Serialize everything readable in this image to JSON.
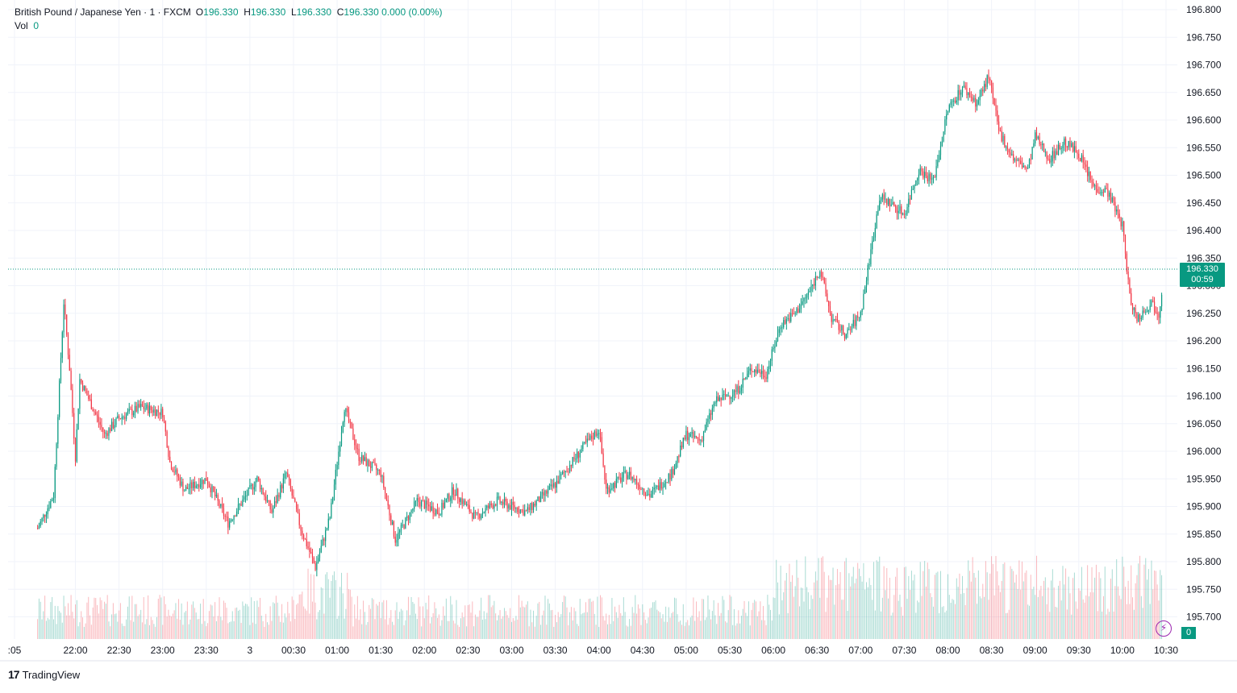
{
  "legend": {
    "symbol": "British Pound / Japanese Yen · 1 · FXCM",
    "o_label": "O",
    "o_value": "196.330",
    "h_label": "H",
    "h_value": "196.330",
    "l_label": "L",
    "l_value": "196.330",
    "c_label": "C",
    "c_value": "196.330",
    "change": "0.000 (0.00%)",
    "vol_label": "Vol",
    "vol_value": "0"
  },
  "price_tag": {
    "price": "196.330",
    "countdown": "00:59"
  },
  "volume_tag": "0",
  "brand": {
    "logo": "17",
    "name": "TradingView"
  },
  "colors": {
    "up": "#089981",
    "down": "#f23645",
    "grid": "#f0f3fa",
    "axis_text": "#131722",
    "alert_icon": "#9c27b0"
  },
  "icons": {
    "alert": "lightning-icon"
  },
  "chart_data": {
    "type": "candlestick",
    "title": "British Pound / Japanese Yen · 1 · FXCM",
    "interval": "1 minute",
    "y_ticks": [
      "196.800",
      "196.750",
      "196.700",
      "196.650",
      "196.600",
      "196.550",
      "196.500",
      "196.450",
      "196.400",
      "196.350",
      "196.300",
      "196.250",
      "196.200",
      "196.150",
      "196.100",
      "196.050",
      "196.000",
      "195.950",
      "195.900",
      "195.850",
      "195.800",
      "195.750",
      "195.700"
    ],
    "ylim": [
      195.66,
      196.81
    ],
    "x_ticks": [
      ":05",
      "22:00",
      "22:30",
      "23:00",
      "23:30",
      "3",
      "00:30",
      "01:00",
      "01:30",
      "02:00",
      "02:30",
      "03:00",
      "03:30",
      "04:00",
      "04:30",
      "05:00",
      "05:30",
      "06:00",
      "06:30",
      "07:00",
      "07:30",
      "08:00",
      "08:30",
      "09:00",
      "09:30",
      "10:00",
      "10:30"
    ],
    "grid": true,
    "last_price": 196.33,
    "price_path": [
      {
        "t": "21:34",
        "p": 195.86
      },
      {
        "t": "21:45",
        "p": 195.92
      },
      {
        "t": "21:52",
        "p": 196.27
      },
      {
        "t": "21:56",
        "p": 196.15
      },
      {
        "t": "22:00",
        "p": 195.99
      },
      {
        "t": "22:03",
        "p": 196.13
      },
      {
        "t": "22:10",
        "p": 196.09
      },
      {
        "t": "22:20",
        "p": 196.03
      },
      {
        "t": "22:30",
        "p": 196.06
      },
      {
        "t": "22:45",
        "p": 196.08
      },
      {
        "t": "23:00",
        "p": 196.07
      },
      {
        "t": "23:05",
        "p": 195.98
      },
      {
        "t": "23:15",
        "p": 195.93
      },
      {
        "t": "23:30",
        "p": 195.95
      },
      {
        "t": "23:45",
        "p": 195.87
      },
      {
        "t": "00:05",
        "p": 195.95
      },
      {
        "t": "00:15",
        "p": 195.89
      },
      {
        "t": "00:25",
        "p": 195.96
      },
      {
        "t": "00:35",
        "p": 195.86
      },
      {
        "t": "00:45",
        "p": 195.79
      },
      {
        "t": "00:55",
        "p": 195.88
      },
      {
        "t": "01:05",
        "p": 196.08
      },
      {
        "t": "01:15",
        "p": 195.99
      },
      {
        "t": "01:30",
        "p": 195.96
      },
      {
        "t": "01:40",
        "p": 195.84
      },
      {
        "t": "01:55",
        "p": 195.91
      },
      {
        "t": "02:10",
        "p": 195.89
      },
      {
        "t": "02:20",
        "p": 195.93
      },
      {
        "t": "02:35",
        "p": 195.88
      },
      {
        "t": "02:50",
        "p": 195.91
      },
      {
        "t": "03:10",
        "p": 195.89
      },
      {
        "t": "03:30",
        "p": 195.94
      },
      {
        "t": "03:50",
        "p": 196.01
      },
      {
        "t": "04:00",
        "p": 196.04
      },
      {
        "t": "04:05",
        "p": 195.93
      },
      {
        "t": "04:20",
        "p": 195.96
      },
      {
        "t": "04:35",
        "p": 195.92
      },
      {
        "t": "04:50",
        "p": 195.96
      },
      {
        "t": "05:00",
        "p": 196.03
      },
      {
        "t": "05:10",
        "p": 196.02
      },
      {
        "t": "05:20",
        "p": 196.09
      },
      {
        "t": "05:35",
        "p": 196.11
      },
      {
        "t": "05:45",
        "p": 196.15
      },
      {
        "t": "05:55",
        "p": 196.14
      },
      {
        "t": "06:05",
        "p": 196.23
      },
      {
        "t": "06:15",
        "p": 196.25
      },
      {
        "t": "06:25",
        "p": 196.29
      },
      {
        "t": "06:32",
        "p": 196.33
      },
      {
        "t": "06:40",
        "p": 196.24
      },
      {
        "t": "06:50",
        "p": 196.21
      },
      {
        "t": "07:00",
        "p": 196.25
      },
      {
        "t": "07:05",
        "p": 196.33
      },
      {
        "t": "07:13",
        "p": 196.46
      },
      {
        "t": "07:20",
        "p": 196.45
      },
      {
        "t": "07:30",
        "p": 196.43
      },
      {
        "t": "07:40",
        "p": 196.51
      },
      {
        "t": "07:50",
        "p": 196.49
      },
      {
        "t": "08:00",
        "p": 196.62
      },
      {
        "t": "08:10",
        "p": 196.66
      },
      {
        "t": "08:20",
        "p": 196.63
      },
      {
        "t": "08:28",
        "p": 196.68
      },
      {
        "t": "08:35",
        "p": 196.58
      },
      {
        "t": "08:45",
        "p": 196.53
      },
      {
        "t": "08:55",
        "p": 196.51
      },
      {
        "t": "09:00",
        "p": 196.57
      },
      {
        "t": "09:10",
        "p": 196.53
      },
      {
        "t": "09:20",
        "p": 196.56
      },
      {
        "t": "09:30",
        "p": 196.54
      },
      {
        "t": "09:40",
        "p": 196.48
      },
      {
        "t": "09:50",
        "p": 196.47
      },
      {
        "t": "10:00",
        "p": 196.41
      },
      {
        "t": "10:05",
        "p": 196.28
      },
      {
        "t": "10:10",
        "p": 196.24
      },
      {
        "t": "10:20",
        "p": 196.27
      },
      {
        "t": "10:25",
        "p": 196.25
      },
      {
        "t": "10:29",
        "p": 196.33
      }
    ]
  }
}
